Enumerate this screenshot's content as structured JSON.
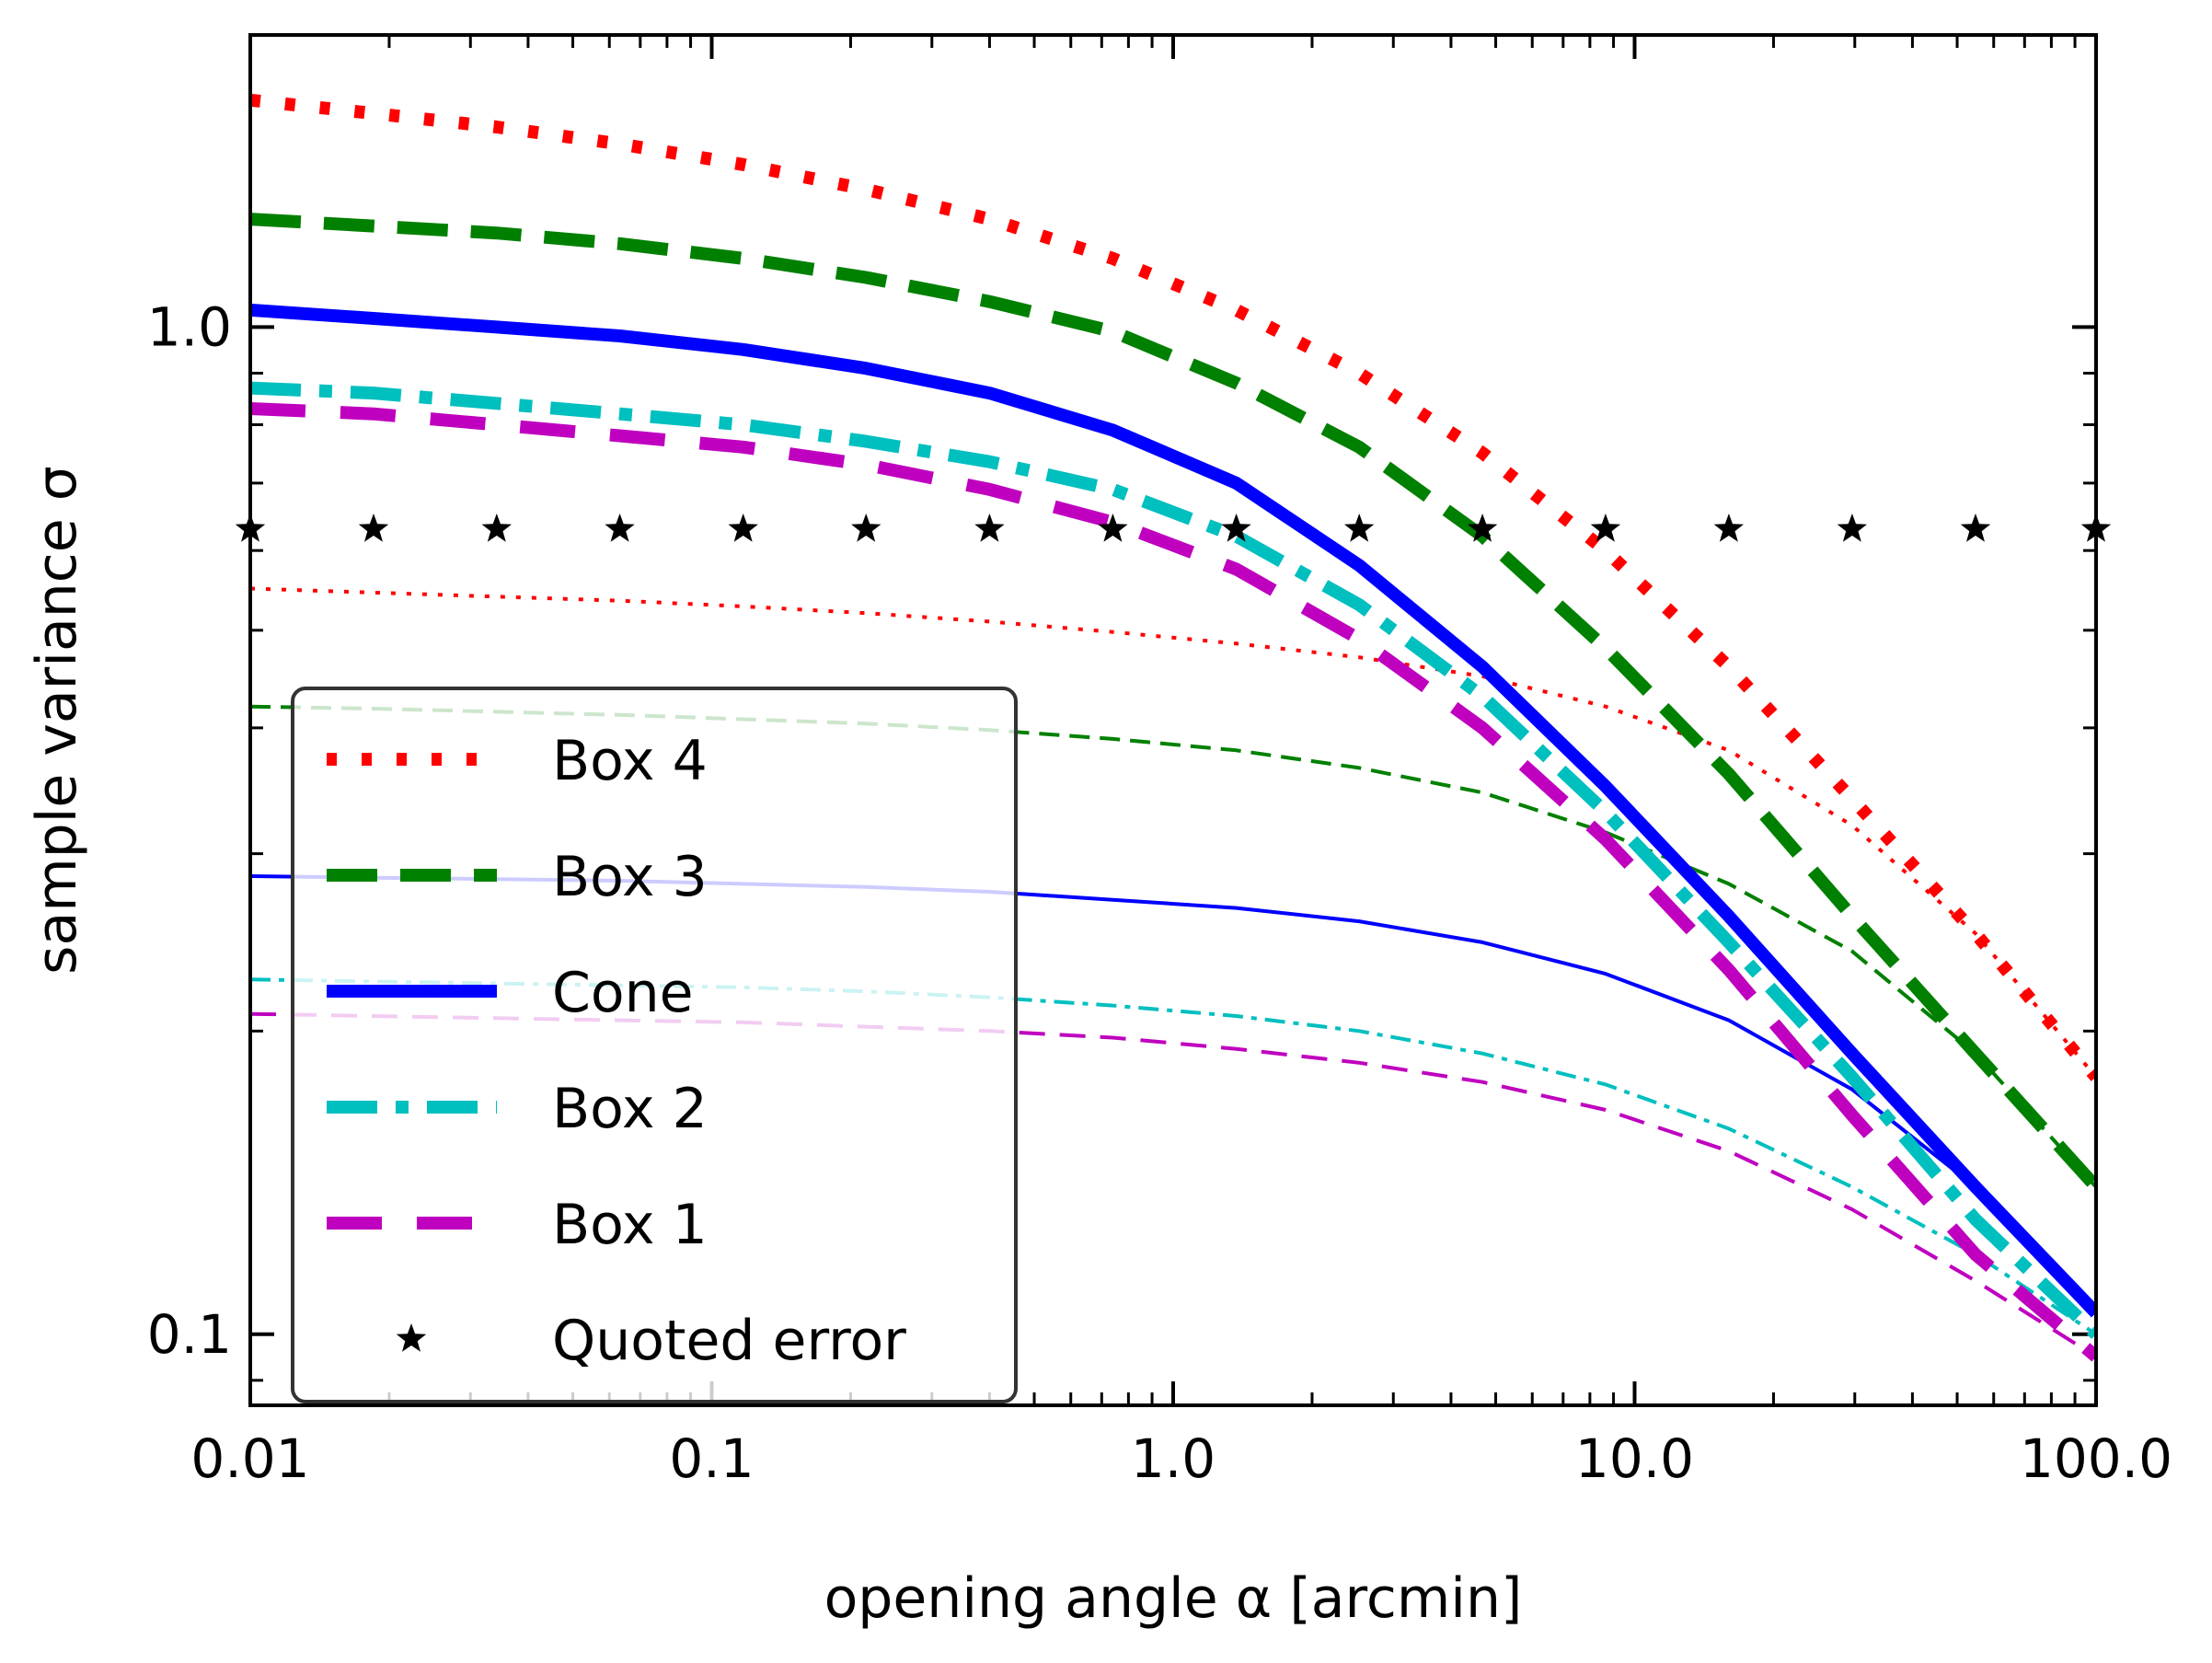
{
  "chart_data": {
    "type": "line",
    "title": "",
    "xlabel": "opening angle α [arcmin]",
    "ylabel": "sample variance σ",
    "xscale": "log",
    "yscale": "log",
    "xlim": [
      0.01,
      100.0
    ],
    "ylim": [
      0.085,
      1.95
    ],
    "x_ticks": [
      0.01,
      0.1,
      1.0,
      10.0,
      100.0
    ],
    "x_tick_labels": [
      "0.01",
      "0.1",
      "1.0",
      "10.0",
      "100.0"
    ],
    "y_ticks": [
      0.1,
      1.0
    ],
    "y_tick_labels": [
      "0.1",
      "1.0"
    ],
    "legend_position": "lower-left",
    "series": [
      {
        "name": "Box 4",
        "color": "#ff0000",
        "style": "dotted",
        "x": [
          0.01,
          0.0185,
          0.0342,
          0.0632,
          0.117,
          0.216,
          0.4,
          0.74,
          1.37,
          2.53,
          4.68,
          8.65,
          16.0,
          29.6,
          54.8,
          100.0
        ],
        "thick": [
          1.68,
          1.63,
          1.58,
          1.52,
          1.45,
          1.37,
          1.28,
          1.17,
          1.04,
          0.9,
          0.75,
          0.6,
          0.46,
          0.34,
          0.25,
          0.18
        ],
        "thin": [
          0.55,
          0.545,
          0.54,
          0.535,
          0.528,
          0.52,
          0.51,
          0.498,
          0.485,
          0.47,
          0.45,
          0.42,
          0.38,
          0.32,
          0.25,
          0.18
        ]
      },
      {
        "name": "Box 3",
        "color": "#008000",
        "style": "dashed",
        "x": [
          0.01,
          0.0185,
          0.0342,
          0.0632,
          0.117,
          0.216,
          0.4,
          0.74,
          1.37,
          2.53,
          4.68,
          8.65,
          16.0,
          29.6,
          54.8,
          100.0
        ],
        "thick": [
          1.28,
          1.26,
          1.24,
          1.21,
          1.17,
          1.12,
          1.06,
          0.99,
          0.88,
          0.76,
          0.62,
          0.48,
          0.36,
          0.26,
          0.19,
          0.14
        ],
        "thin": [
          0.42,
          0.418,
          0.415,
          0.412,
          0.408,
          0.404,
          0.398,
          0.39,
          0.38,
          0.365,
          0.345,
          0.315,
          0.28,
          0.24,
          0.19,
          0.14
        ]
      },
      {
        "name": "Cone",
        "color": "#0000ff",
        "style": "solid",
        "x": [
          0.01,
          0.0185,
          0.0342,
          0.0632,
          0.117,
          0.216,
          0.4,
          0.74,
          1.37,
          2.53,
          4.68,
          8.65,
          16.0,
          29.6,
          54.8,
          100.0
        ],
        "thick": [
          1.04,
          1.02,
          1.0,
          0.98,
          0.95,
          0.91,
          0.86,
          0.79,
          0.7,
          0.58,
          0.46,
          0.35,
          0.26,
          0.19,
          0.14,
          0.105
        ],
        "thin": [
          0.285,
          0.284,
          0.283,
          0.282,
          0.28,
          0.278,
          0.275,
          0.27,
          0.265,
          0.257,
          0.245,
          0.228,
          0.205,
          0.175,
          0.14,
          0.105
        ]
      },
      {
        "name": "Box 2",
        "color": "#00bfbf",
        "style": "dashdot",
        "x": [
          0.01,
          0.0185,
          0.0342,
          0.0632,
          0.117,
          0.216,
          0.4,
          0.74,
          1.37,
          2.53,
          4.68,
          8.65,
          16.0,
          29.6,
          54.8,
          100.0
        ],
        "thick": [
          0.87,
          0.86,
          0.84,
          0.82,
          0.8,
          0.77,
          0.735,
          0.69,
          0.62,
          0.53,
          0.43,
          0.33,
          0.245,
          0.18,
          0.13,
          0.1
        ],
        "thin": [
          0.225,
          0.224,
          0.223,
          0.222,
          0.221,
          0.219,
          0.216,
          0.212,
          0.207,
          0.2,
          0.19,
          0.177,
          0.16,
          0.14,
          0.12,
          0.1
        ]
      },
      {
        "name": "Box 1",
        "color": "#bf00bf",
        "style": "loosedash",
        "x": [
          0.01,
          0.0185,
          0.0342,
          0.0632,
          0.117,
          0.216,
          0.4,
          0.74,
          1.37,
          2.53,
          4.68,
          8.65,
          16.0,
          29.6,
          54.8,
          100.0
        ],
        "thick": [
          0.83,
          0.82,
          0.8,
          0.78,
          0.76,
          0.73,
          0.69,
          0.64,
          0.575,
          0.49,
          0.4,
          0.31,
          0.23,
          0.165,
          0.12,
          0.095
        ],
        "thin": [
          0.208,
          0.207,
          0.206,
          0.205,
          0.204,
          0.202,
          0.2,
          0.197,
          0.192,
          0.186,
          0.178,
          0.167,
          0.152,
          0.133,
          0.113,
          0.095
        ]
      }
    ],
    "quoted_error": {
      "name": "Quoted error",
      "marker": "★",
      "color": "#000000",
      "x": [
        0.01,
        0.0185,
        0.0342,
        0.0632,
        0.117,
        0.216,
        0.4,
        0.74,
        1.37,
        2.53,
        4.68,
        8.65,
        16.0,
        29.6,
        54.8,
        100.0
      ],
      "y": 0.63
    },
    "legend": [
      "Box 4",
      "Box 3",
      "Cone",
      "Box 2",
      "Box 1",
      "Quoted error"
    ]
  }
}
